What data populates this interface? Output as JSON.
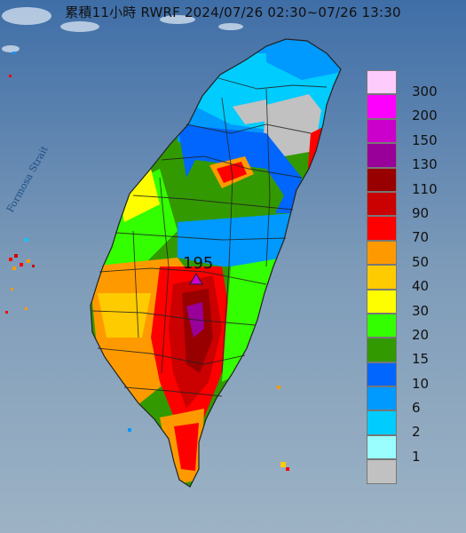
{
  "title": "累積11小時 RWRF 2024/07/26 02:30~07/26 13:30",
  "strait_label": "Formosa Strait",
  "max_value_label": "195",
  "legend": {
    "items": [
      {
        "label": "300",
        "color": "#fecbfd"
      },
      {
        "label": "200",
        "color": "#fd00fd"
      },
      {
        "label": "150",
        "color": "#cb00cb"
      },
      {
        "label": "130",
        "color": "#980099"
      },
      {
        "label": "110",
        "color": "#980000"
      },
      {
        "label": "90",
        "color": "#cb0000"
      },
      {
        "label": "70",
        "color": "#fe0000"
      },
      {
        "label": "50",
        "color": "#fe9a00"
      },
      {
        "label": "40",
        "color": "#fecb00"
      },
      {
        "label": "30",
        "color": "#fefe00"
      },
      {
        "label": "20",
        "color": "#33ff00"
      },
      {
        "label": "15",
        "color": "#339900"
      },
      {
        "label": "10",
        "color": "#0066fe"
      },
      {
        "label": "6",
        "color": "#0099fe"
      },
      {
        "label": "2",
        "color": "#00ccfe"
      },
      {
        "label": "1",
        "color": "#9afefe"
      },
      {
        "label": "",
        "color": "#c1c1c1"
      }
    ]
  }
}
